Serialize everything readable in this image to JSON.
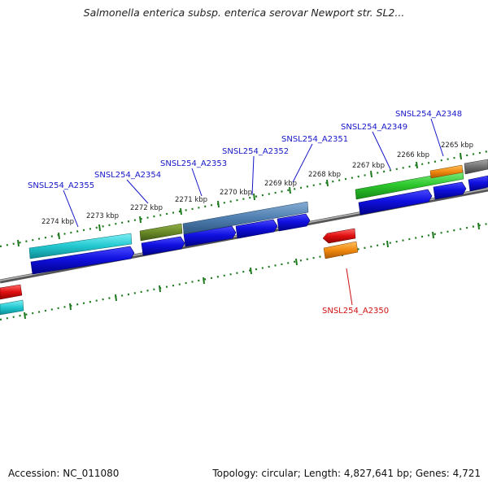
{
  "title": "Salmonella enterica subsp. enterica serovar Newport str. SL2...",
  "footer": {
    "accession": "Accession: NC_011080",
    "summary": "Topology: circular; Length: 4,827,641 bp; Genes: 4,721"
  },
  "scale_labels": [
    "2274 kbp",
    "2273 kbp",
    "2272 kbp",
    "2271 kbp",
    "2270 kbp",
    "2269 kbp",
    "2268 kbp",
    "2267 kbp",
    "2266 kbp",
    "2265 kbp"
  ],
  "gene_labels": [
    {
      "text": "SNSL254_A2355",
      "color": "#1616c8"
    },
    {
      "text": "SNSL254_A2354",
      "color": "#1616c8"
    },
    {
      "text": "SNSL254_A2353",
      "color": "#1616c8"
    },
    {
      "text": "SNSL254_A2352",
      "color": "#1616c8"
    },
    {
      "text": "SNSL254_A2351",
      "color": "#1616c8"
    },
    {
      "text": "SNSL254_A2349",
      "color": "#1616c8"
    },
    {
      "text": "SNSL254_A2348",
      "color": "#1616c8"
    },
    {
      "text": "SNSL254_A2350",
      "color": "#d01010"
    }
  ],
  "colors": {
    "backbone": "#7a7a7a",
    "cds": "#1010e0",
    "ticks": "#1e7a1e",
    "cyan": "#22c8d0",
    "olive": "#6a8a28",
    "steel": "#4f7fb0",
    "green": "#2ec82e",
    "orange": "#f08a10",
    "gray": "#707070",
    "red": "#e01010"
  }
}
